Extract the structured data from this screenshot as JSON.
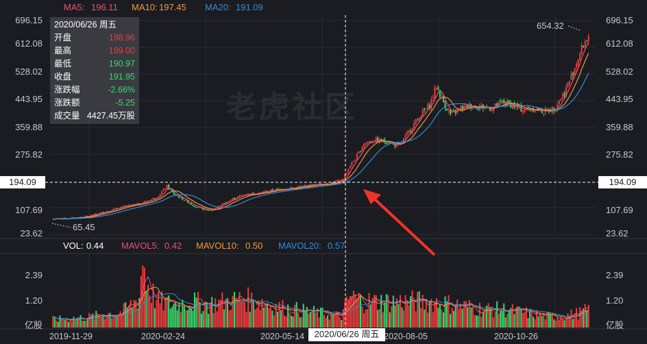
{
  "header": {
    "ma5_label": "MA5:",
    "ma5_value": "196.11",
    "ma10_label": "MA10:",
    "ma10_value": "197.45",
    "ma20_label": "MA20:",
    "ma20_value": "191.09"
  },
  "volume_header": {
    "vol_label": "VOL:",
    "vol_value": "0.44",
    "mavol5_label": "MAVOL5:",
    "mavol5_value": "0.42",
    "mavol10_label": "MAVOL10:",
    "mavol10_value": "0.50",
    "mavol20_label": "MAVOL20:",
    "mavol20_value": "0.57"
  },
  "tooltip": {
    "date": "2020/06/26 周五",
    "rows": [
      {
        "label": "开盘",
        "value": "198.96",
        "color": "red"
      },
      {
        "label": "最高",
        "value": "199.00",
        "color": "red"
      },
      {
        "label": "最低",
        "value": "190.97",
        "color": "green"
      },
      {
        "label": "收盘",
        "value": "191.95",
        "color": "green"
      },
      {
        "label": "涨跌幅",
        "value": "-2.66%",
        "color": "green"
      },
      {
        "label": "涨跌额",
        "value": "-5.25",
        "color": "green"
      },
      {
        "label": "成交量",
        "value": "4427.45万股",
        "color": "white"
      }
    ]
  },
  "crosshair": {
    "price": "194.09",
    "date": "2020/06/26 周五"
  },
  "watermark": "老虎社区",
  "colors": {
    "up": "#ef3b3b",
    "down": "#38d96b",
    "ma5": "#e5527a",
    "ma10": "#f09a3e",
    "ma20": "#2f8fd8",
    "arrow": "#f1342a"
  },
  "chart_data": [
    {
      "type": "candlestick",
      "title": "",
      "x_ticks": [
        "2019-11-29",
        "2020-02-24",
        "2020-05-14",
        "2020-08-05",
        "2020-10-26"
      ],
      "y_ticks": [
        "696.15",
        "612.08",
        "528.02",
        "443.95",
        "359.88",
        "275.82",
        "194.09",
        "107.69",
        "23.62"
      ],
      "ylim": [
        23.62,
        696.15
      ],
      "annotations": {
        "max": "654.32",
        "min": "65.45"
      },
      "series_approx_close": [
        [
          0,
          72
        ],
        [
          10,
          74
        ],
        [
          20,
          80
        ],
        [
          30,
          95
        ],
        [
          40,
          110
        ],
        [
          50,
          120
        ],
        [
          60,
          140
        ],
        [
          66,
          175
        ],
        [
          70,
          150
        ],
        [
          76,
          132
        ],
        [
          82,
          112
        ],
        [
          88,
          100
        ],
        [
          92,
          100
        ],
        [
          98,
          118
        ],
        [
          104,
          135
        ],
        [
          110,
          148
        ],
        [
          120,
          155
        ],
        [
          130,
          165
        ],
        [
          140,
          170
        ],
        [
          150,
          178
        ],
        [
          160,
          185
        ],
        [
          167,
          192
        ],
        [
          172,
          240
        ],
        [
          176,
          270
        ],
        [
          180,
          310
        ],
        [
          186,
          320
        ],
        [
          194,
          315
        ],
        [
          200,
          300
        ],
        [
          206,
          345
        ],
        [
          212,
          395
        ],
        [
          218,
          430
        ],
        [
          222,
          490
        ],
        [
          226,
          440
        ],
        [
          230,
          400
        ],
        [
          236,
          420
        ],
        [
          242,
          430
        ],
        [
          248,
          425
        ],
        [
          254,
          420
        ],
        [
          260,
          440
        ],
        [
          266,
          430
        ],
        [
          272,
          415
        ],
        [
          278,
          420
        ],
        [
          284,
          410
        ],
        [
          290,
          420
        ],
        [
          296,
          470
        ],
        [
          300,
          520
        ],
        [
          304,
          580
        ],
        [
          307,
          620
        ],
        [
          310,
          650
        ]
      ],
      "ma_series": [
        "MA5",
        "MA10",
        "MA20"
      ]
    },
    {
      "type": "bar",
      "title": "",
      "ylabel": "亿股",
      "y_ticks": [
        "2.39",
        "1.20"
      ],
      "ylim": [
        0,
        2.8
      ],
      "volume_approx": [
        [
          0,
          0.3
        ],
        [
          20,
          0.4
        ],
        [
          40,
          0.6
        ],
        [
          46,
          0.9
        ],
        [
          50,
          1.2
        ],
        [
          52,
          2.7
        ],
        [
          54,
          1.8
        ],
        [
          60,
          1.0
        ],
        [
          70,
          0.9
        ],
        [
          80,
          1.0
        ],
        [
          90,
          0.9
        ],
        [
          100,
          1.0
        ],
        [
          110,
          1.1
        ],
        [
          120,
          1.0
        ],
        [
          130,
          0.8
        ],
        [
          140,
          0.7
        ],
        [
          150,
          0.6
        ],
        [
          160,
          0.5
        ],
        [
          167,
          0.44
        ],
        [
          172,
          1.2
        ],
        [
          180,
          1.0
        ],
        [
          190,
          1.0
        ],
        [
          200,
          1.0
        ],
        [
          210,
          1.0
        ],
        [
          220,
          1.0
        ],
        [
          230,
          0.9
        ],
        [
          240,
          0.8
        ],
        [
          250,
          0.7
        ],
        [
          260,
          0.7
        ],
        [
          270,
          0.6
        ],
        [
          280,
          0.5
        ],
        [
          290,
          0.4
        ],
        [
          300,
          0.5
        ],
        [
          307,
          0.6
        ],
        [
          310,
          0.7
        ]
      ]
    }
  ]
}
